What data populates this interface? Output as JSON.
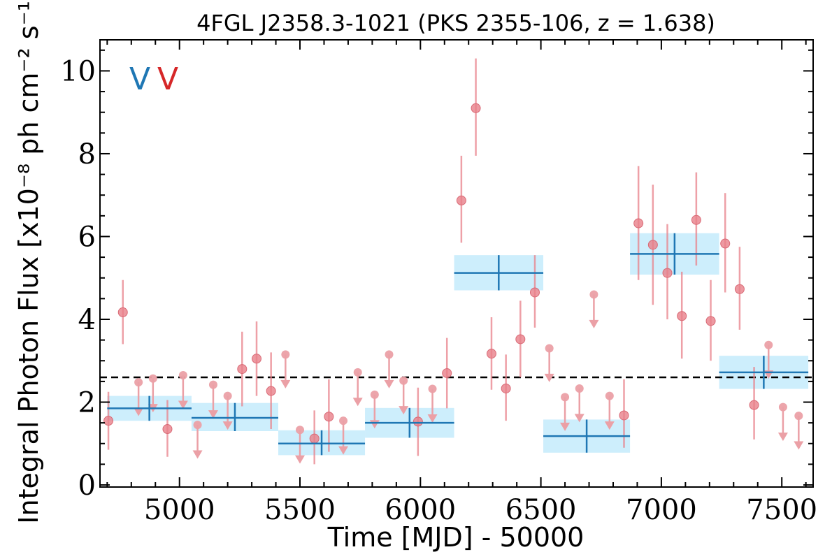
{
  "chart_data": {
    "type": "scatter",
    "title": "4FGL J2358.3-1021 (PKS 2355-106, z = 1.638)",
    "xlabel": "Time [MJD] - 50000",
    "ylabel": "Integral Photon Flux [x10⁻⁸ ph cm⁻² s⁻¹]",
    "xlim": [
      4670,
      7630
    ],
    "ylim": [
      -0.05,
      10.75
    ],
    "xticks": [
      5000,
      5500,
      6000,
      6500,
      7000,
      7500
    ],
    "xtick_labels": [
      "5000",
      "5500",
      "6000",
      "6500",
      "7000",
      "7500"
    ],
    "yticks": [
      0,
      2,
      4,
      6,
      8,
      10
    ],
    "ytick_labels": [
      "0",
      "2",
      "4",
      "6",
      "8",
      "10"
    ],
    "reference_level": 2.6,
    "legend_markers": [
      {
        "text": "V",
        "color": "#1f77b4"
      },
      {
        "text": "V",
        "color": "#d62728"
      }
    ],
    "colors": {
      "points": "#e8808a",
      "upper_limits": "#eba0a6",
      "bins": "#1f77b4",
      "bin_band": "#cdeefc"
    },
    "binned_series": {
      "name": "",
      "bins": [
        {
          "x0": 4700,
          "x1": 5050,
          "y": 1.85,
          "ylo": 1.55,
          "yhi": 2.15
        },
        {
          "x0": 5050,
          "x1": 5410,
          "y": 1.62,
          "ylo": 1.3,
          "yhi": 1.98
        },
        {
          "x0": 5410,
          "x1": 5770,
          "y": 1.0,
          "ylo": 0.72,
          "yhi": 1.32
        },
        {
          "x0": 5770,
          "x1": 6140,
          "y": 1.5,
          "ylo": 1.14,
          "yhi": 1.86
        },
        {
          "x0": 6140,
          "x1": 6510,
          "y": 5.12,
          "ylo": 4.7,
          "yhi": 5.55
        },
        {
          "x0": 6510,
          "x1": 6870,
          "y": 1.18,
          "ylo": 0.78,
          "yhi": 1.58
        },
        {
          "x0": 6870,
          "x1": 7240,
          "y": 5.58,
          "ylo": 5.08,
          "yhi": 6.08
        },
        {
          "x0": 7240,
          "x1": 7610,
          "y": 2.72,
          "ylo": 2.32,
          "yhi": 3.12
        }
      ]
    },
    "points": [
      {
        "x": 4705,
        "y": 1.55,
        "ylo": 0.85,
        "yhi": 2.25
      },
      {
        "x": 4765,
        "y": 4.17,
        "ylo": 3.4,
        "yhi": 4.95
      },
      {
        "x": 4950,
        "y": 1.35,
        "ylo": 0.68,
        "yhi": 2.05
      },
      {
        "x": 5260,
        "y": 2.8,
        "ylo": 1.9,
        "yhi": 3.7
      },
      {
        "x": 5320,
        "y": 3.05,
        "ylo": 2.15,
        "yhi": 3.95
      },
      {
        "x": 5380,
        "y": 2.27,
        "ylo": 1.35,
        "yhi": 3.2
      },
      {
        "x": 5560,
        "y": 1.12,
        "ylo": 0.5,
        "yhi": 1.8
      },
      {
        "x": 5620,
        "y": 1.65,
        "ylo": 0.8,
        "yhi": 2.55
      },
      {
        "x": 5990,
        "y": 1.53,
        "ylo": 0.7,
        "yhi": 2.35
      },
      {
        "x": 6110,
        "y": 2.7,
        "ylo": 1.85,
        "yhi": 3.55
      },
      {
        "x": 6170,
        "y": 6.87,
        "ylo": 5.85,
        "yhi": 7.95
      },
      {
        "x": 6230,
        "y": 9.1,
        "ylo": 7.95,
        "yhi": 10.3
      },
      {
        "x": 6295,
        "y": 3.17,
        "ylo": 2.3,
        "yhi": 4.05
      },
      {
        "x": 6355,
        "y": 2.33,
        "ylo": 1.55,
        "yhi": 3.15
      },
      {
        "x": 6415,
        "y": 3.52,
        "ylo": 2.6,
        "yhi": 4.45
      },
      {
        "x": 6475,
        "y": 4.65,
        "ylo": 3.8,
        "yhi": 5.55
      },
      {
        "x": 6845,
        "y": 1.68,
        "ylo": 0.9,
        "yhi": 2.55
      },
      {
        "x": 6905,
        "y": 6.32,
        "ylo": 4.95,
        "yhi": 7.7
      },
      {
        "x": 6965,
        "y": 5.8,
        "ylo": 4.35,
        "yhi": 7.25
      },
      {
        "x": 7025,
        "y": 5.12,
        "ylo": 4.0,
        "yhi": 6.3
      },
      {
        "x": 7085,
        "y": 4.08,
        "ylo": 3.05,
        "yhi": 5.15
      },
      {
        "x": 7145,
        "y": 6.4,
        "ylo": 5.3,
        "yhi": 7.55
      },
      {
        "x": 7205,
        "y": 3.96,
        "ylo": 3.0,
        "yhi": 4.95
      },
      {
        "x": 7265,
        "y": 5.83,
        "ylo": 4.65,
        "yhi": 7.05
      },
      {
        "x": 7325,
        "y": 4.73,
        "ylo": 3.75,
        "yhi": 5.75
      },
      {
        "x": 7385,
        "y": 1.93,
        "ylo": 1.1,
        "yhi": 2.85
      }
    ],
    "upper_limits": [
      {
        "x": 4830,
        "y": 2.48
      },
      {
        "x": 4890,
        "y": 2.57
      },
      {
        "x": 5015,
        "y": 2.65
      },
      {
        "x": 5075,
        "y": 1.45
      },
      {
        "x": 5140,
        "y": 2.42
      },
      {
        "x": 5200,
        "y": 2.15
      },
      {
        "x": 5440,
        "y": 3.15
      },
      {
        "x": 5500,
        "y": 1.33
      },
      {
        "x": 5680,
        "y": 1.55
      },
      {
        "x": 5740,
        "y": 2.72
      },
      {
        "x": 5810,
        "y": 2.18
      },
      {
        "x": 5870,
        "y": 3.15
      },
      {
        "x": 5930,
        "y": 2.52
      },
      {
        "x": 6050,
        "y": 2.32
      },
      {
        "x": 6535,
        "y": 3.3
      },
      {
        "x": 6600,
        "y": 2.12
      },
      {
        "x": 6660,
        "y": 2.33
      },
      {
        "x": 6720,
        "y": 4.6
      },
      {
        "x": 6785,
        "y": 2.15
      },
      {
        "x": 7445,
        "y": 3.38
      },
      {
        "x": 7505,
        "y": 1.88
      },
      {
        "x": 7570,
        "y": 1.67
      }
    ]
  }
}
